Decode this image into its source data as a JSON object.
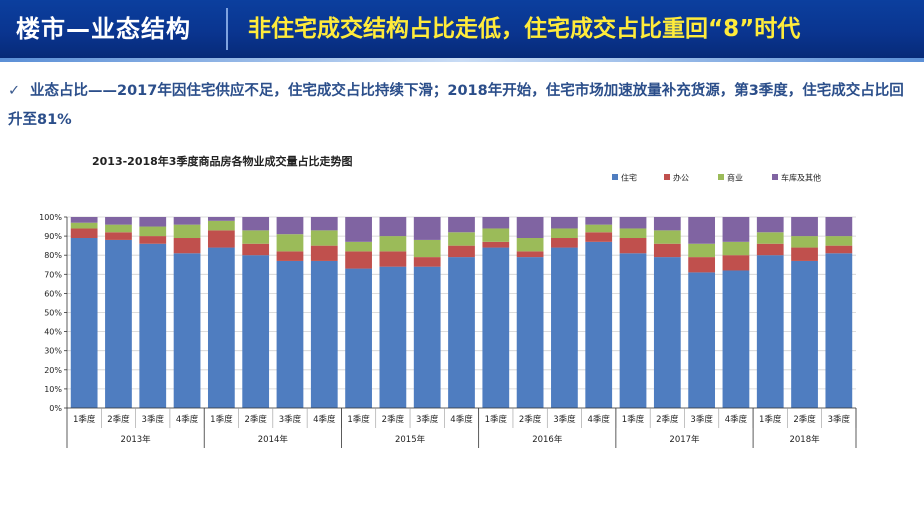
{
  "header": {
    "title": "楼市—业态结构",
    "headline": "非住宅成交结构占比走低，住宅成交占比重回“8”时代"
  },
  "bullet": {
    "text": "业态占比——2017年因住宅供应不足，住宅成交占比持续下滑；2018年开始，住宅市场加速放量补充货源，第3季度，住宅成交占比回升至81%"
  },
  "colors": {
    "residential": "#4f7dc0",
    "office": "#c0504d",
    "commercial": "#9bbb59",
    "garage": "#8064a2"
  },
  "chart_data": {
    "type": "bar",
    "stacked": true,
    "percent": true,
    "title": "2013-2018年3季度商品房各物业成交量占比走势图",
    "legend_position": "top-right",
    "ylim": [
      0,
      100
    ],
    "y_ticks": [
      "0%",
      "10%",
      "20%",
      "30%",
      "40%",
      "50%",
      "60%",
      "70%",
      "80%",
      "90%",
      "100%"
    ],
    "groups": [
      {
        "label": "2013年",
        "count": 4
      },
      {
        "label": "2014年",
        "count": 4
      },
      {
        "label": "2015年",
        "count": 4
      },
      {
        "label": "2016年",
        "count": 4
      },
      {
        "label": "2017年",
        "count": 4
      },
      {
        "label": "2018年",
        "count": 3
      }
    ],
    "categories": [
      "1季度",
      "2季度",
      "3季度",
      "4季度",
      "1季度",
      "2季度",
      "3季度",
      "4季度",
      "1季度",
      "2季度",
      "3季度",
      "4季度",
      "1季度",
      "2季度",
      "3季度",
      "4季度",
      "1季度",
      "2季度",
      "3季度",
      "4季度",
      "1季度",
      "2季度",
      "3季度"
    ],
    "series": [
      {
        "name": "住宅",
        "color": "#4f7dc0",
        "values": [
          89,
          88,
          86,
          81,
          84,
          80,
          77,
          77,
          73,
          74,
          74,
          79,
          84,
          79,
          84,
          87,
          81,
          79,
          71,
          72,
          80,
          77,
          81
        ]
      },
      {
        "name": "办公",
        "color": "#c0504d",
        "values": [
          5,
          4,
          4,
          8,
          9,
          6,
          5,
          8,
          9,
          8,
          5,
          6,
          3,
          3,
          5,
          5,
          8,
          7,
          8,
          8,
          6,
          7,
          4
        ]
      },
      {
        "name": "商业",
        "color": "#9bbb59",
        "values": [
          3,
          4,
          5,
          7,
          5,
          7,
          9,
          8,
          5,
          8,
          9,
          7,
          7,
          7,
          5,
          4,
          5,
          7,
          7,
          7,
          6,
          6,
          5
        ]
      },
      {
        "name": "车库及其他",
        "color": "#8064a2",
        "values": [
          3,
          4,
          5,
          4,
          2,
          7,
          9,
          7,
          13,
          10,
          12,
          8,
          6,
          11,
          6,
          4,
          6,
          7,
          14,
          13,
          8,
          10,
          10
        ]
      }
    ]
  }
}
